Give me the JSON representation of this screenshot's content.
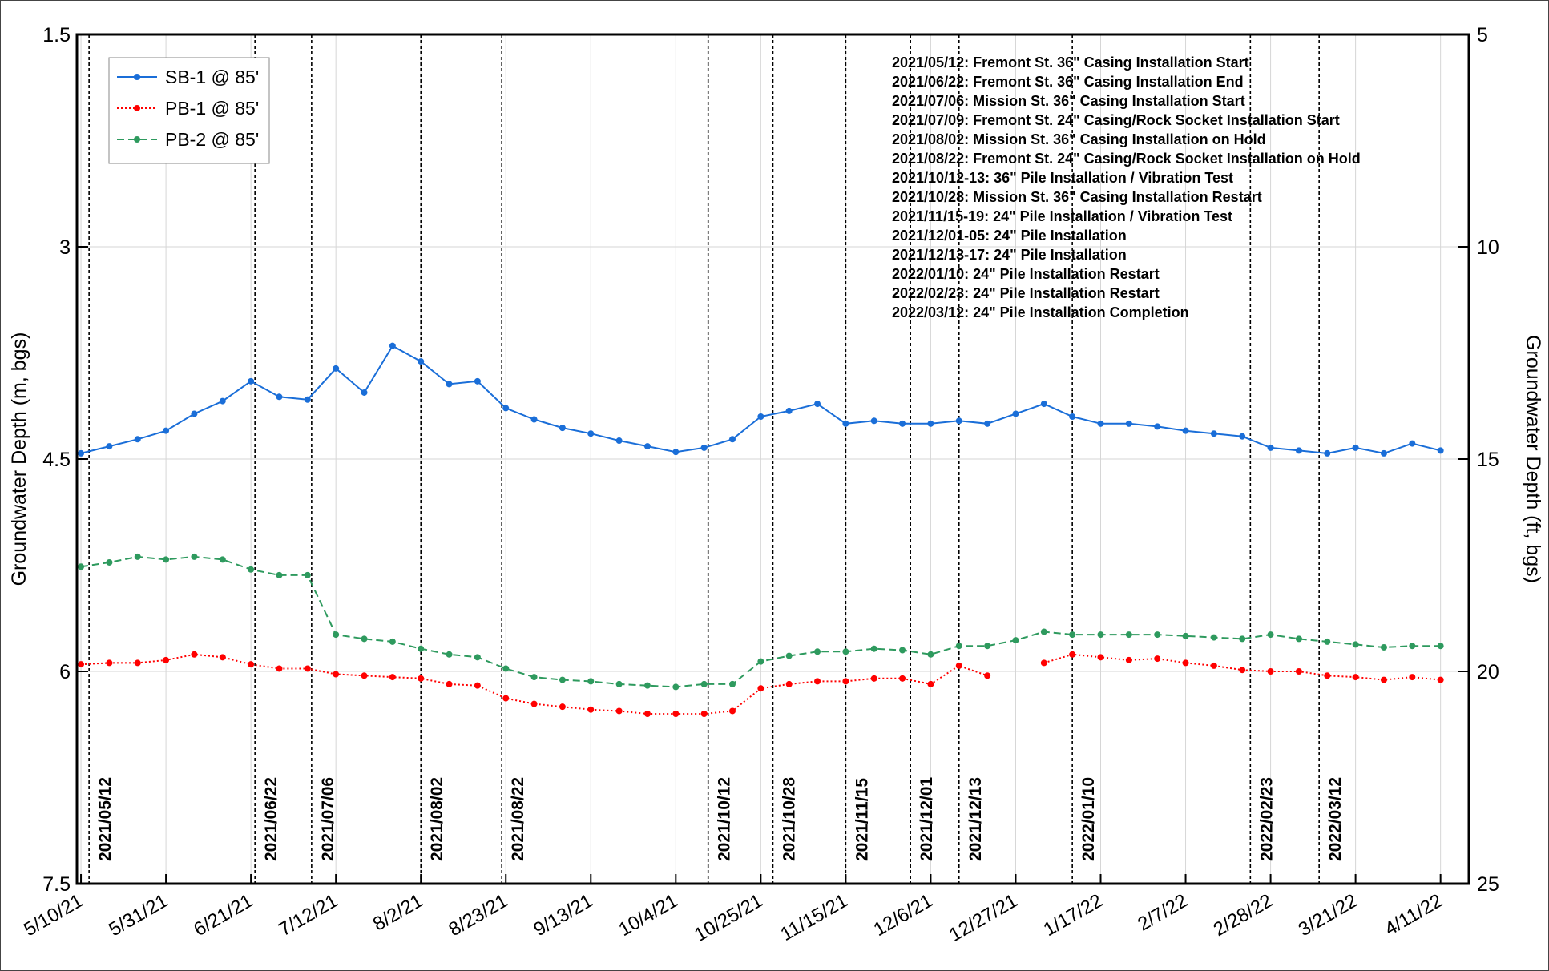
{
  "chart_data": {
    "type": "line",
    "ylabel": "Groundwater Depth (m, bgs)",
    "y2label": "Groundwater Depth (ft, bgs)",
    "ylim": [
      1.5,
      7.5
    ],
    "yticks": [
      1.5,
      3,
      4.5,
      6,
      7.5
    ],
    "y_inverted": true,
    "y2lim": [
      5,
      25
    ],
    "y2ticks": [
      5,
      10,
      15,
      20,
      25
    ],
    "xlim": [
      "2021-05-09",
      "2022-04-18"
    ],
    "xticks": [
      {
        "value": "2021-05-10",
        "label": "5/10/21"
      },
      {
        "value": "2021-05-31",
        "label": "5/31/21"
      },
      {
        "value": "2021-06-21",
        "label": "6/21/21"
      },
      {
        "value": "2021-07-12",
        "label": "7/12/21"
      },
      {
        "value": "2021-08-02",
        "label": "8/2/21"
      },
      {
        "value": "2021-08-23",
        "label": "8/23/21"
      },
      {
        "value": "2021-09-13",
        "label": "9/13/21"
      },
      {
        "value": "2021-10-04",
        "label": "10/4/21"
      },
      {
        "value": "2021-10-25",
        "label": "10/25/21"
      },
      {
        "value": "2021-11-15",
        "label": "11/15/21"
      },
      {
        "value": "2021-12-06",
        "label": "12/6/21"
      },
      {
        "value": "2021-12-27",
        "label": "12/27/21"
      },
      {
        "value": "2022-01-17",
        "label": "1/17/22"
      },
      {
        "value": "2022-02-07",
        "label": "2/7/22"
      },
      {
        "value": "2022-02-28",
        "label": "2/28/22"
      },
      {
        "value": "2022-03-21",
        "label": "3/21/22"
      },
      {
        "value": "2022-04-11",
        "label": "4/11/22"
      }
    ],
    "grid": true,
    "legend": "upper left",
    "x": [
      "2021-05-10",
      "2021-05-17",
      "2021-05-24",
      "2021-05-31",
      "2021-06-07",
      "2021-06-14",
      "2021-06-21",
      "2021-06-28",
      "2021-07-05",
      "2021-07-12",
      "2021-07-19",
      "2021-07-26",
      "2021-08-02",
      "2021-08-09",
      "2021-08-16",
      "2021-08-23",
      "2021-08-30",
      "2021-09-06",
      "2021-09-13",
      "2021-09-20",
      "2021-09-27",
      "2021-10-04",
      "2021-10-11",
      "2021-10-18",
      "2021-10-25",
      "2021-11-01",
      "2021-11-08",
      "2021-11-15",
      "2021-11-22",
      "2021-11-29",
      "2021-12-06",
      "2021-12-13",
      "2021-12-20",
      "2021-12-27",
      "2022-01-03",
      "2022-01-10",
      "2022-01-17",
      "2022-01-24",
      "2022-01-31",
      "2022-02-07",
      "2022-02-14",
      "2022-02-21",
      "2022-02-28",
      "2022-03-07",
      "2022-03-14",
      "2022-03-21",
      "2022-03-28",
      "2022-04-04",
      "2022-04-11"
    ],
    "series": [
      {
        "name": "SB-1 @ 85'",
        "color": "#1a6ed8",
        "line_style": "solid",
        "values": [
          4.46,
          4.41,
          4.36,
          4.3,
          4.18,
          4.09,
          3.95,
          4.06,
          4.08,
          3.86,
          4.03,
          3.7,
          3.81,
          3.97,
          3.95,
          4.14,
          4.22,
          4.28,
          4.32,
          4.37,
          4.41,
          4.45,
          4.42,
          4.36,
          4.2,
          4.16,
          4.11,
          4.25,
          4.23,
          4.25,
          4.25,
          4.23,
          4.25,
          4.18,
          4.11,
          4.2,
          4.25,
          4.25,
          4.27,
          4.3,
          4.32,
          4.34,
          4.42,
          4.44,
          4.46,
          4.42,
          4.46,
          4.39,
          4.44
        ]
      },
      {
        "name": "PB-1 @ 85'",
        "color": "#ff0000",
        "line_style": "dotted",
        "values": [
          5.95,
          5.94,
          5.94,
          5.92,
          5.88,
          5.9,
          5.95,
          5.98,
          5.98,
          6.02,
          6.03,
          6.04,
          6.05,
          6.09,
          6.1,
          6.19,
          6.23,
          6.25,
          6.27,
          6.28,
          6.3,
          6.3,
          6.3,
          6.28,
          6.12,
          6.09,
          6.07,
          6.07,
          6.05,
          6.05,
          6.09,
          5.96,
          6.03,
          null,
          5.94,
          5.88,
          5.9,
          5.92,
          5.91,
          5.94,
          5.96,
          5.99,
          6.0,
          6.0,
          6.03,
          6.04,
          6.06,
          6.04,
          6.06
        ]
      },
      {
        "name": "PB-2 @ 85'",
        "color": "#2e9a5e",
        "line_style": "dashed",
        "values": [
          5.26,
          5.23,
          5.19,
          5.21,
          5.19,
          5.21,
          5.28,
          5.32,
          5.32,
          5.74,
          5.77,
          5.79,
          5.84,
          5.88,
          5.9,
          5.98,
          6.04,
          6.06,
          6.07,
          6.09,
          6.1,
          6.11,
          6.09,
          6.09,
          5.93,
          5.89,
          5.86,
          5.86,
          5.84,
          5.85,
          5.88,
          5.82,
          5.82,
          5.78,
          5.72,
          5.74,
          5.74,
          5.74,
          5.74,
          5.75,
          5.76,
          5.77,
          5.74,
          5.77,
          5.79,
          5.81,
          5.83,
          5.82,
          5.82
        ]
      }
    ],
    "event_lines": [
      "2021/05/12",
      "2021/06/22",
      "2021/07/06",
      "2021/08/02",
      "2021/08/22",
      "2021/10/12",
      "2021/10/28",
      "2021/11/15",
      "2021/12/01",
      "2021/12/13",
      "2022/01/10",
      "2022/02/23",
      "2022/03/12"
    ],
    "annotations": [
      "2021/05/12: Fremont St. 36\" Casing Installation Start",
      "2021/06/22: Fremont St. 36\" Casing Installation End",
      "2021/07/06: Mission St.  36\" Casing Installation Start",
      "2021/07/09: Fremont St. 24\" Casing/Rock Socket Installation Start",
      "2021/08/02: Mission St.  36\" Casing Installation on Hold",
      "2021/08/22: Fremont St. 24\" Casing/Rock Socket Installation on Hold",
      "2021/10/12-13: 36\" Pile Installation / Vibration Test",
      "2021/10/28: Mission St.  36\" Casing Installation Restart",
      "2021/11/15-19: 24\" Pile Installation / Vibration Test",
      "2021/12/01-05: 24\" Pile Installation",
      "2021/12/13-17: 24\" Pile Installation",
      "2022/01/10: 24\" Pile Installation Restart",
      "2022/02/23: 24\" Pile Installation Restart",
      "2022/03/12: 24\" Pile Installation Completion"
    ]
  }
}
